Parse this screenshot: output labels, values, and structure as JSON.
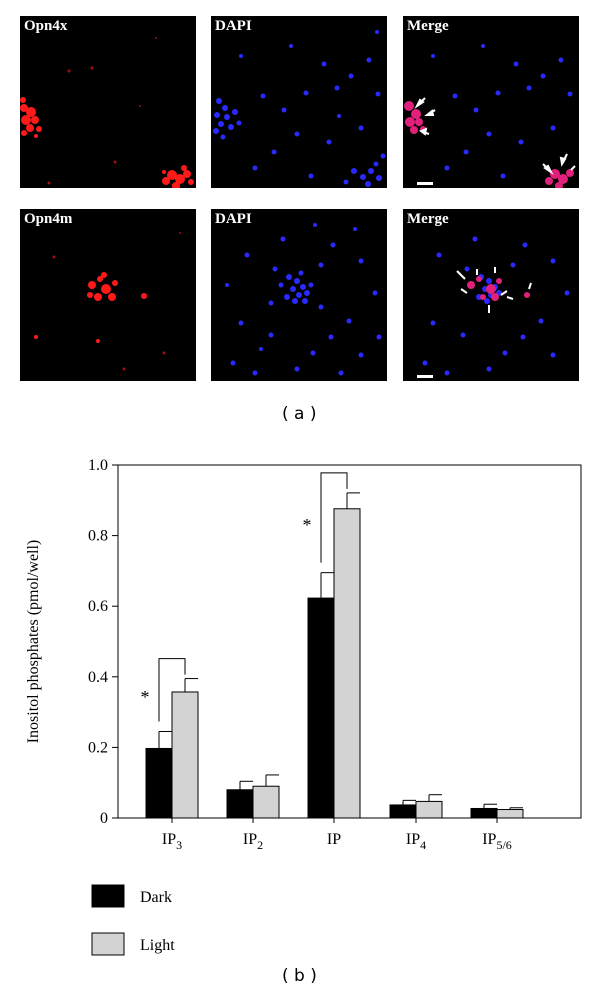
{
  "panel_a": {
    "rows": [
      {
        "labels": [
          "Opn4x",
          "DAPI",
          "Merge"
        ]
      },
      {
        "labels": [
          "Opn4m",
          "DAPI",
          "Merge"
        ]
      }
    ],
    "caption": "( a )",
    "colors": {
      "marker": "#ff1a1a",
      "nuclei": "#2a2aff",
      "background": "#000000"
    }
  },
  "panel_b": {
    "caption": "( b )"
  },
  "chart_data": {
    "type": "bar",
    "categories": [
      "IP3",
      "IP2",
      "IP",
      "IP4",
      "IP5/6"
    ],
    "category_labels": [
      {
        "base": "IP",
        "sub": "3"
      },
      {
        "base": "IP",
        "sub": "2"
      },
      {
        "base": "IP",
        "sub": ""
      },
      {
        "base": "IP",
        "sub": "4"
      },
      {
        "base": "IP",
        "sub": "5/6"
      }
    ],
    "series": [
      {
        "name": "Dark",
        "color": "#000000",
        "values": [
          0.197,
          0.08,
          0.623,
          0.037,
          0.027
        ],
        "errors": [
          0.048,
          0.024,
          0.072,
          0.013,
          0.012
        ]
      },
      {
        "name": "Light",
        "color": "#d3d3d3",
        "values": [
          0.357,
          0.09,
          0.876,
          0.047,
          0.024
        ],
        "errors": [
          0.038,
          0.032,
          0.045,
          0.019,
          0.005
        ]
      }
    ],
    "ylabel": "Inositol phosphates (pmol/well)",
    "xlabel": "",
    "ylim": [
      0,
      1.0
    ],
    "yticks": [
      "0",
      "0.2",
      "0.4",
      "0.6",
      "0.8",
      "1.0"
    ],
    "significance": [
      {
        "category": "IP3",
        "symbol": "*"
      },
      {
        "category": "IP",
        "symbol": "*"
      }
    ],
    "legend_position": "bottom-left",
    "grid": false
  }
}
